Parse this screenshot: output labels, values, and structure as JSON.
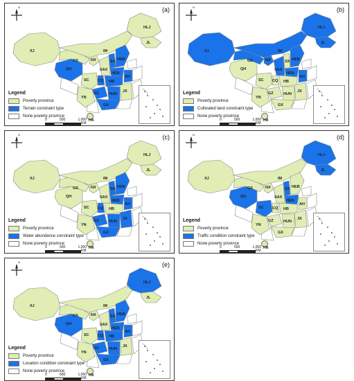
{
  "colors": {
    "poverty": "#e0edb4",
    "constraint": "#1a73e8",
    "none": "#ffffff",
    "border": "#8a8a8a"
  },
  "legend": {
    "title": "Legend",
    "poverty_label": "Poverty province",
    "none_label": "None poverty province"
  },
  "scale": {
    "ticks": [
      "0",
      "500",
      "1,000"
    ],
    "unit": "KM"
  },
  "compass_label": "N",
  "south_sea_label": "HN",
  "panels": [
    {
      "letter": "(a)",
      "constraint_label": "Terrain constraint type",
      "blue": [
        "QH",
        "SX",
        "HEB",
        "HEN",
        "HB",
        "AH",
        "CQ",
        "GZ",
        "HUN",
        "GX"
      ]
    },
    {
      "letter": "(b)",
      "constraint_label": "Cultivated land constraint type",
      "blue": [
        "XJ",
        "IM",
        "HLJ",
        "JL",
        "HEB",
        "NX",
        "GS",
        "SAX",
        "HEN",
        "AH"
      ]
    },
    {
      "letter": "(c)",
      "constraint_label": "Water abundance constraint type",
      "blue": [
        "HEB",
        "SX",
        "HEN",
        "AH",
        "CQ",
        "HUN",
        "GZ",
        "JX",
        "GX"
      ]
    },
    {
      "letter": "(d)",
      "constraint_label": "Traffic condition constraint type",
      "blue": [
        "QH",
        "HLJ",
        "JL",
        "SX",
        "HEN",
        "SC"
      ]
    },
    {
      "letter": "(e)",
      "constraint_label": "Location condition constraint type",
      "blue": [
        "QH",
        "HLJ",
        "HEB",
        "SX",
        "HEN",
        "HB",
        "AH",
        "CQ",
        "HUN",
        "GX",
        "GZ"
      ]
    }
  ],
  "provinces": [
    {
      "id": "XJ",
      "label": "XJ"
    },
    {
      "id": "QH",
      "label": "QH"
    },
    {
      "id": "GS",
      "label": "GS"
    },
    {
      "id": "NX",
      "label": "NX"
    },
    {
      "id": "IM",
      "label": "IM"
    },
    {
      "id": "HLJ",
      "label": "HLJ"
    },
    {
      "id": "JL",
      "label": "JL"
    },
    {
      "id": "SX",
      "label": "SX"
    },
    {
      "id": "HEB",
      "label": "HEB"
    },
    {
      "id": "SAX",
      "label": "SAX"
    },
    {
      "id": "HEN",
      "label": "HEN"
    },
    {
      "id": "AH",
      "label": "AH"
    },
    {
      "id": "SC",
      "label": "SC"
    },
    {
      "id": "CQ",
      "label": "CQ"
    },
    {
      "id": "HB",
      "label": "HB"
    },
    {
      "id": "GZ",
      "label": "GZ"
    },
    {
      "id": "HUN",
      "label": "HUN"
    },
    {
      "id": "JX",
      "label": "JX"
    },
    {
      "id": "YN",
      "label": "YN"
    },
    {
      "id": "GX",
      "label": "GX"
    }
  ]
}
